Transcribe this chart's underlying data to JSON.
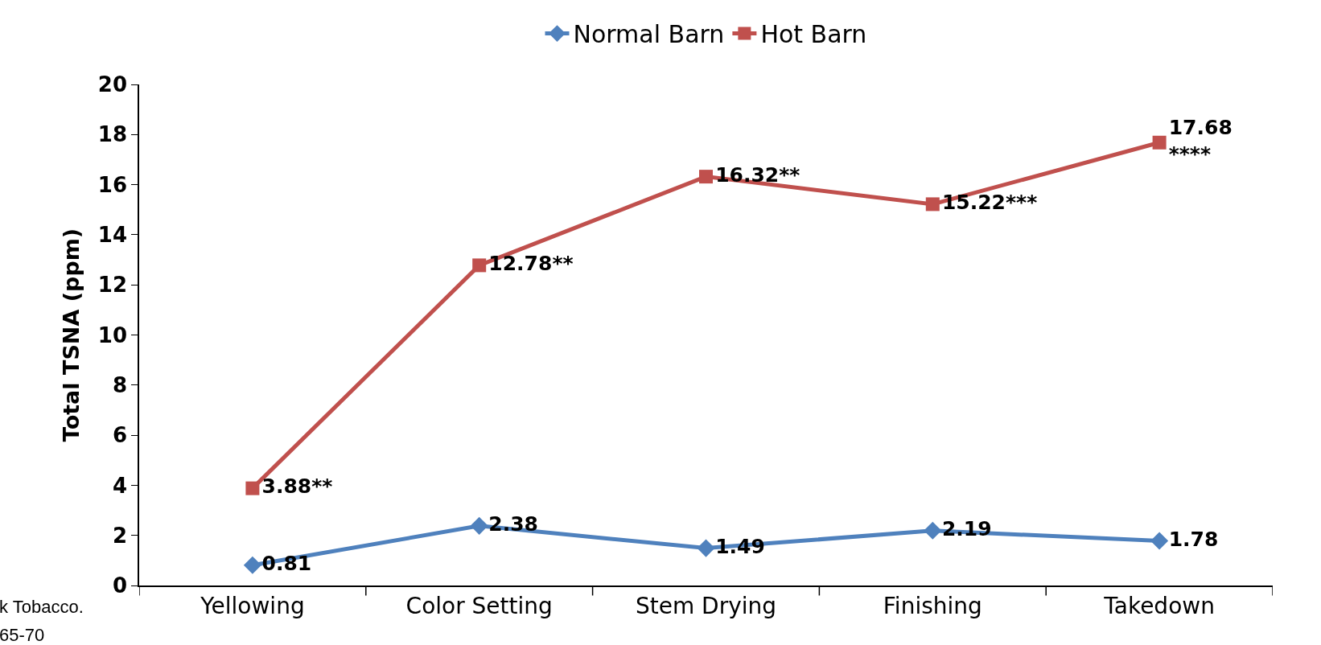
{
  "chart_data": {
    "type": "line",
    "ylabel": "Total TSNA (ppm)",
    "categories": [
      "Yellowing",
      "Color Setting",
      "Stem Drying",
      "Finishing",
      "Takedown"
    ],
    "series": [
      {
        "name": "Normal Barn",
        "color": "#4f81bd",
        "marker": "diamond",
        "values": [
          0.81,
          2.38,
          1.49,
          2.19,
          1.78
        ],
        "value_labels": [
          "0.81",
          "2.38",
          "1.49",
          "2.19",
          "1.78"
        ]
      },
      {
        "name": "Hot Barn",
        "color": "#c0504d",
        "marker": "square",
        "values": [
          3.88,
          12.78,
          16.32,
          15.22,
          17.68
        ],
        "value_labels": [
          "3.88**",
          "12.78**",
          "16.32**",
          "15.22***",
          "17.68\n****"
        ]
      }
    ],
    "ylim": [
      0,
      20
    ],
    "yticks": [
      0,
      2,
      4,
      6,
      8,
      10,
      12,
      14,
      16,
      18,
      20
    ],
    "legend": "top",
    "annotations": [
      "k Tobacco.",
      "65-70"
    ]
  }
}
